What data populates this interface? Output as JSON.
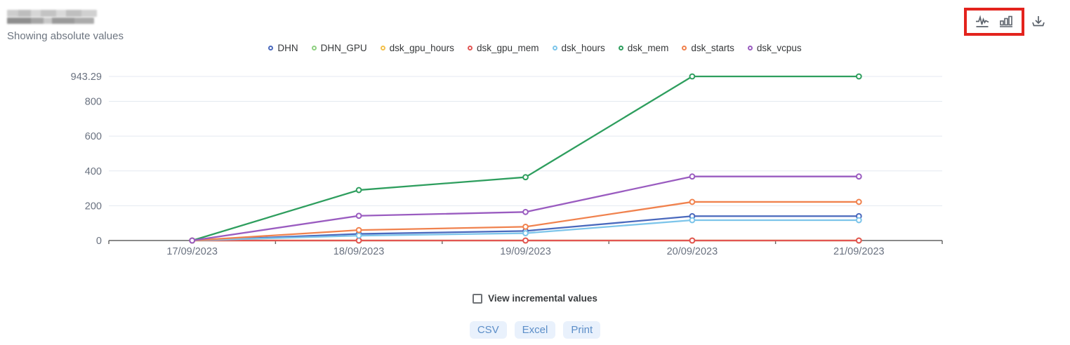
{
  "header": {
    "title_redacted": true,
    "subtitle": "Showing absolute values"
  },
  "toolbar": {
    "highlight_color": "#e3231d",
    "icons": [
      {
        "name": "line-chart-icon",
        "highlighted": true
      },
      {
        "name": "bar-chart-icon",
        "highlighted": true
      },
      {
        "name": "download-icon",
        "highlighted": false
      }
    ]
  },
  "chart_data": {
    "type": "line",
    "title": "",
    "xlabel": "",
    "ylabel": "",
    "categories": [
      "17/09/2023",
      "18/09/2023",
      "19/09/2023",
      "20/09/2023",
      "21/09/2023"
    ],
    "series": [
      {
        "name": "DHN",
        "color": "#4a69bd",
        "values": [
          0,
          38,
          55,
          140,
          140
        ]
      },
      {
        "name": "DHN_GPU",
        "color": "#8ed081",
        "values": [
          0,
          0,
          0,
          0,
          0
        ]
      },
      {
        "name": "dsk_gpu_hours",
        "color": "#f3c04b",
        "values": [
          0,
          0,
          0,
          0,
          0
        ]
      },
      {
        "name": "dsk_gpu_mem",
        "color": "#e25553",
        "values": [
          0,
          0,
          0,
          0,
          0
        ]
      },
      {
        "name": "dsk_hours",
        "color": "#7dc5ea",
        "values": [
          0,
          28,
          42,
          117,
          117
        ]
      },
      {
        "name": "dsk_mem",
        "color": "#2e9e5e",
        "values": [
          0,
          290,
          364,
          943.29,
          943.29
        ]
      },
      {
        "name": "dsk_starts",
        "color": "#f0824e",
        "values": [
          0,
          60,
          79,
          222,
          222
        ]
      },
      {
        "name": "dsk_vcpus",
        "color": "#9a5cc0",
        "values": [
          0,
          142,
          164,
          368,
          368
        ]
      }
    ],
    "y_ticks": [
      0,
      200,
      400,
      600,
      800,
      943.29
    ],
    "y_tick_labels": [
      "0",
      "200",
      "400",
      "600",
      "800",
      "943.29"
    ],
    "ylim": [
      0,
      943.29
    ],
    "grid": true,
    "legend_position": "top",
    "colors": {
      "grid_line": "#e4e9f0",
      "axis_line": "#646464",
      "tick_label": "#6a7280"
    }
  },
  "controls": {
    "incremental_checkbox_label": "View incremental values",
    "incremental_checked": false,
    "export_buttons": [
      "CSV",
      "Excel",
      "Print"
    ]
  }
}
